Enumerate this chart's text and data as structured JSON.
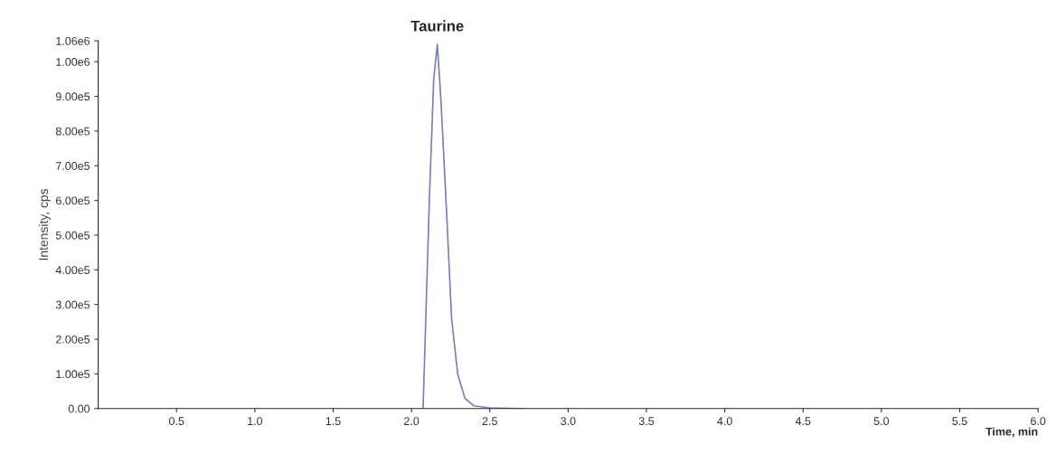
{
  "chart_data": {
    "type": "line",
    "xlabel": "Time, min",
    "ylabel": "Intensity, cps",
    "annotations": [
      {
        "text": "Taurine",
        "x": 2.165,
        "y": 1050000
      }
    ],
    "series": [
      {
        "color": "#7b7bc0",
        "x": [
          2.074,
          2.114,
          2.142,
          2.165,
          2.188,
          2.227,
          2.256,
          2.295,
          2.341,
          2.398,
          2.5,
          2.71
        ],
        "values": [
          0,
          600000,
          950000,
          1050000,
          890000,
          540000,
          260000,
          100000,
          30000,
          8000,
          2000,
          0
        ]
      }
    ],
    "xlim": [
      0,
      6.0
    ],
    "xticks": [
      {
        "value": 0.5,
        "label": "0.5"
      },
      {
        "value": 1.0,
        "label": "1.0"
      },
      {
        "value": 1.5,
        "label": "1.5"
      },
      {
        "value": 2.0,
        "label": "2.0"
      },
      {
        "value": 2.5,
        "label": "2.5"
      },
      {
        "value": 3.0,
        "label": "3.0"
      },
      {
        "value": 3.5,
        "label": "3.5"
      },
      {
        "value": 4.0,
        "label": "4.0"
      },
      {
        "value": 4.5,
        "label": "4.5"
      },
      {
        "value": 5.0,
        "label": "5.0"
      },
      {
        "value": 5.5,
        "label": "5.5"
      },
      {
        "value": 6.0,
        "label": "6.0"
      }
    ],
    "ylim": [
      0,
      1060000
    ],
    "yticks": [
      {
        "value": 0,
        "label": "0.00"
      },
      {
        "value": 100000,
        "label": "1.00e5"
      },
      {
        "value": 200000,
        "label": "2.00e5"
      },
      {
        "value": 300000,
        "label": "3.00e5"
      },
      {
        "value": 400000,
        "label": "4.00e5"
      },
      {
        "value": 500000,
        "label": "5.00e5"
      },
      {
        "value": 600000,
        "label": "6.00e5"
      },
      {
        "value": 700000,
        "label": "7.00e5"
      },
      {
        "value": 800000,
        "label": "8.00e5"
      },
      {
        "value": 900000,
        "label": "9.00e5"
      },
      {
        "value": 1000000,
        "label": "1.00e6"
      },
      {
        "value": 1060000,
        "label": "1.06e6"
      }
    ],
    "grid": false,
    "legend": false
  }
}
